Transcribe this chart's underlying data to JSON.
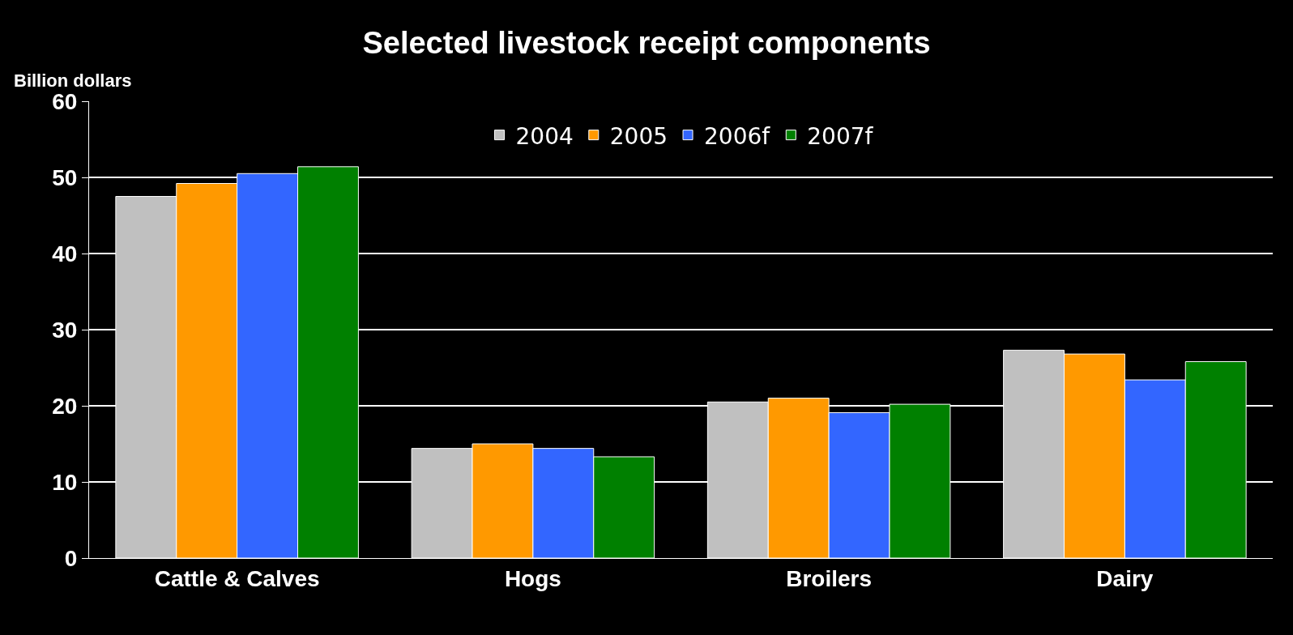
{
  "chart_data": {
    "type": "bar",
    "title": "Selected livestock receipt components",
    "ylabel": "Billion dollars",
    "categories": [
      "Cattle & Calves",
      "Hogs",
      "Broilers",
      "Dairy"
    ],
    "series": [
      {
        "name": "2004",
        "color": "#c0c0c0",
        "values": [
          47.5,
          14.4,
          20.5,
          27.3
        ]
      },
      {
        "name": "2005",
        "color": "#ff9900",
        "values": [
          49.2,
          15.0,
          21.0,
          26.8
        ]
      },
      {
        "name": "2006f",
        "color": "#3366ff",
        "values": [
          50.5,
          14.4,
          19.1,
          23.4
        ]
      },
      {
        "name": "2007f",
        "color": "#008000",
        "values": [
          51.4,
          13.3,
          20.2,
          25.8
        ]
      }
    ],
    "ylim": [
      0,
      60
    ],
    "yticks": [
      0,
      10,
      20,
      30,
      40,
      50,
      60
    ],
    "grid": "y",
    "legend": "top"
  }
}
